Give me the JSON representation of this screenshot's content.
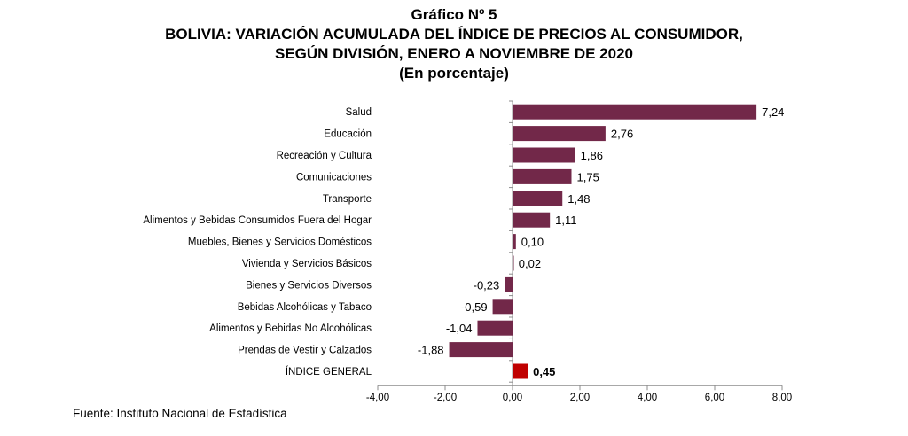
{
  "titles": {
    "line1": "Gráfico Nº 5",
    "line2": "BOLIVIA: VARIACIÓN ACUMULADA DEL ÍNDICE DE PRECIOS AL CONSUMIDOR,",
    "line3": "SEGÚN DIVISIÓN, ENERO A NOVIEMBRE DE 2020",
    "line4": "(En porcentaje)"
  },
  "source": "Fuente: Instituto Nacional de Estadística",
  "chart_data": {
    "type": "bar",
    "orientation": "horizontal",
    "categories": [
      "Salud",
      "Educación",
      "Recreación y Cultura",
      "Comunicaciones",
      "Transporte",
      "Alimentos y Bebidas Consumidos Fuera del Hogar",
      "Muebles, Bienes y Servicios Domésticos",
      "Vivienda y Servicios Básicos",
      "Bienes y Servicios Diversos",
      "Bebidas Alcohólicas y Tabaco",
      "Alimentos y Bebidas No Alcohólicas",
      "Prendas de Vestir y Calzados",
      "ÍNDICE GENERAL"
    ],
    "values": [
      7.24,
      2.76,
      1.86,
      1.75,
      1.48,
      1.11,
      0.1,
      0.02,
      -0.23,
      -0.59,
      -1.04,
      -1.88,
      0.45
    ],
    "value_labels": [
      "7,24",
      "2,76",
      "1,86",
      "1,75",
      "1,48",
      "1,11",
      "0,10",
      "0,02",
      "-0,23",
      "-0,59",
      "-1,04",
      "-1,88",
      "0,45"
    ],
    "highlight_index": 12,
    "xlim": [
      -4,
      8
    ],
    "xticks": [
      -4,
      -2,
      0,
      2,
      4,
      6,
      8
    ],
    "xtick_labels": [
      "-4,00",
      "-2,00",
      "0,00",
      "2,00",
      "4,00",
      "6,00",
      "8,00"
    ],
    "grid": false,
    "colors": {
      "bar": "#722849",
      "highlight": "#c00000",
      "axis": "#8c8c8c"
    }
  }
}
